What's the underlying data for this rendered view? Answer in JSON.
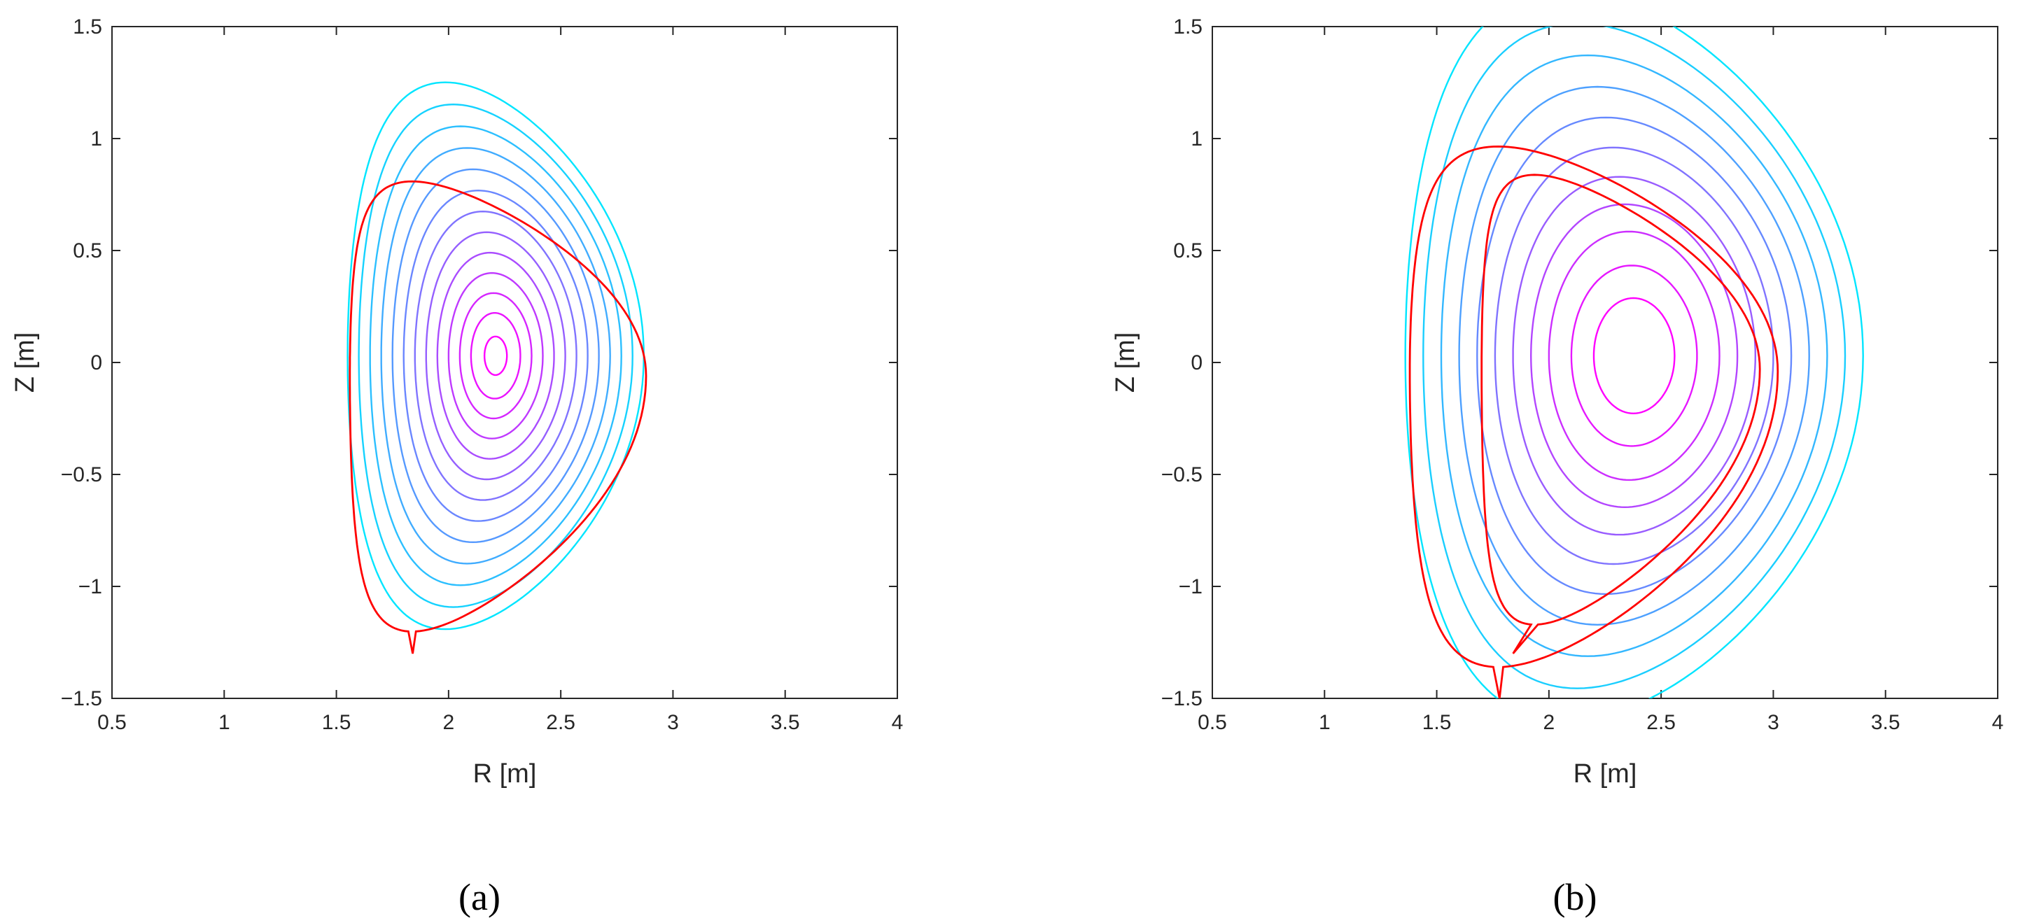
{
  "chart_data": [
    {
      "type": "line",
      "panel_label": "(a)",
      "xlabel": "R [m]",
      "ylabel": "Z [m]",
      "xlim": [
        0.5,
        4
      ],
      "ylim": [
        -1.5,
        1.5
      ],
      "xticks": [
        "0.5",
        "1",
        "1.5",
        "2",
        "2.5",
        "3",
        "3.5",
        "4"
      ],
      "yticks": [
        "1.5",
        "1",
        "0.5",
        "0",
        "−0.5",
        "−1",
        "−1.5"
      ],
      "grid": false,
      "legend": "none",
      "colors": {
        "boundary": "#ff0000",
        "outer": "#00e5ff",
        "inner": "#ff00ff"
      },
      "boundary": {
        "R0": 2.22,
        "a": 0.66,
        "kappa": 1.88,
        "delta": 0.58,
        "Z0": -0.06,
        "xpoint": [
          1.84,
          -1.3
        ]
      },
      "surfaces": {
        "center": [
          2.21,
          0.03
        ],
        "a": [
          0.66,
          0.61,
          0.56,
          0.51,
          0.46,
          0.41,
          0.36,
          0.31,
          0.26,
          0.21,
          0.16,
          0.11,
          0.05
        ],
        "kappa": [
          1.85,
          1.84,
          1.83,
          1.82,
          1.81,
          1.8,
          1.79,
          1.78,
          1.77,
          1.76,
          1.75,
          1.74,
          1.72
        ],
        "delta": [
          0.34,
          0.31,
          0.28,
          0.25,
          0.22,
          0.19,
          0.16,
          0.13,
          0.1,
          0.08,
          0.06,
          0.04,
          0.02
        ]
      }
    },
    {
      "type": "line",
      "panel_label": "(b)",
      "xlabel": "R [m]",
      "ylabel": "Z [m]",
      "xlim": [
        0.5,
        4
      ],
      "ylim": [
        -1.5,
        1.5
      ],
      "xticks": [
        "0.5",
        "1",
        "1.5",
        "2",
        "2.5",
        "3",
        "3.5",
        "4"
      ],
      "yticks": [
        "1.5",
        "1",
        "0.5",
        "0",
        "−0.5",
        "−1",
        "−1.5"
      ],
      "grid": false,
      "legend": "none",
      "colors": {
        "boundary": "#ff0000",
        "outer": "#00e5ff",
        "inner": "#ff00ff"
      },
      "boundaries": [
        {
          "R0": 2.2,
          "a": 0.82,
          "kappa": 1.75,
          "delta": 0.52,
          "Z0": -0.04,
          "xpoint": [
            1.78,
            -1.5
          ]
        },
        {
          "R0": 2.32,
          "a": 0.62,
          "kappa": 2.0,
          "delta": 0.62,
          "Z0": -0.03,
          "xpoint": [
            1.84,
            -1.3
          ]
        }
      ],
      "surfaces": {
        "center": [
          2.38,
          0.03
        ],
        "a": [
          1.02,
          0.94,
          0.86,
          0.78,
          0.7,
          0.62,
          0.54,
          0.46,
          0.38,
          0.28,
          0.18
        ],
        "kappa": [
          1.6,
          1.58,
          1.56,
          1.54,
          1.52,
          1.5,
          1.48,
          1.47,
          1.46,
          1.44,
          1.43
        ],
        "delta": [
          0.3,
          0.27,
          0.24,
          0.21,
          0.18,
          0.15,
          0.12,
          0.09,
          0.06,
          0.04,
          0.02
        ]
      }
    }
  ]
}
